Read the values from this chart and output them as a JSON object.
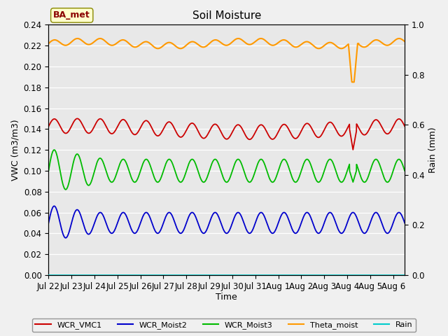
{
  "title": "Soil Moisture",
  "xlabel": "Time",
  "ylabel_left": "VWC (m3/m3)",
  "ylabel_right": "Rain (mm)",
  "ylim_left": [
    0.0,
    0.24
  ],
  "ylim_right": [
    0.0,
    1.0
  ],
  "annotation_label": "BA_met",
  "colors": {
    "WCR_VMC1": "#cc0000",
    "WCR_Moist2": "#0000cc",
    "WCR_Moist3": "#00bb00",
    "Theta_moist": "#ff9900",
    "Rain": "#00cccc"
  },
  "background_color": "#f0f0f0",
  "plot_bg_color": "#e8e8e8",
  "legend_entries": [
    "WCR_VMC1",
    "WCR_Moist2",
    "WCR_Moist3",
    "Theta_moist",
    "Rain"
  ],
  "tick_labels": [
    "Jul 22",
    "Jul 23",
    "Jul 24",
    "Jul 25",
    "Jul 26",
    "Jul 27",
    "Jul 28",
    "Jul 29",
    "Jul 30",
    "Jul 31",
    "Aug 1",
    "Aug 2",
    "Aug 3",
    "Aug 4",
    "Aug 5",
    "Aug 6"
  ],
  "title_fontsize": 11,
  "label_fontsize": 9,
  "tick_fontsize": 8.5
}
